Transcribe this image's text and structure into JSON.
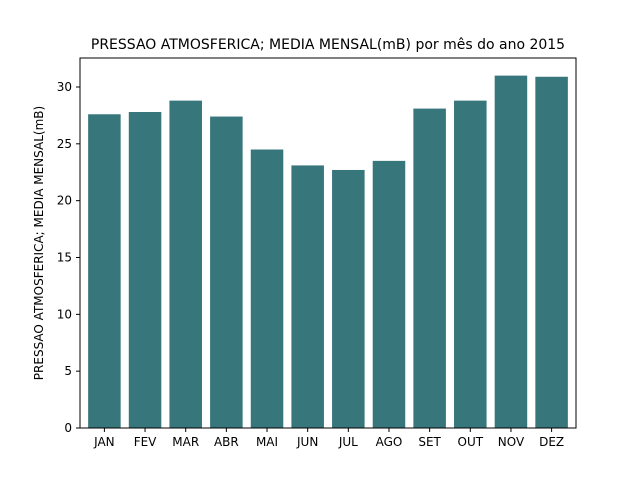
{
  "chart_data": {
    "type": "bar",
    "title": "PRESSAO ATMOSFERICA; MEDIA MENSAL(mB) por mês do ano 2015",
    "xlabel": "",
    "ylabel": "PRESSAO ATMOSFERICA; MEDIA MENSAL(mB)",
    "categories": [
      "JAN",
      "FEV",
      "MAR",
      "ABR",
      "MAI",
      "JUN",
      "JUL",
      "AGO",
      "SET",
      "OUT",
      "NOV",
      "DEZ"
    ],
    "values": [
      27.6,
      27.8,
      28.8,
      27.4,
      24.5,
      23.1,
      22.7,
      23.5,
      28.1,
      28.8,
      31.0,
      30.9
    ],
    "ylim": [
      0,
      32.55
    ],
    "yticks": [
      0,
      5,
      10,
      15,
      20,
      25,
      30
    ],
    "bar_color": "#37767b",
    "grid": false,
    "legend": "none"
  }
}
